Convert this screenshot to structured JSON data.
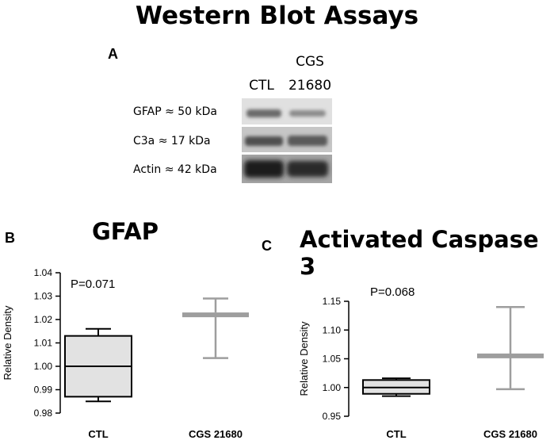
{
  "title": "Western Blot Assays",
  "panel_a": {
    "letter": "A",
    "lanes": [
      "CTL",
      "CGS",
      "21680"
    ],
    "bands": [
      "GFAP ≈ 50 kDa",
      "C3a ≈ 17 kDa",
      "Actin ≈ 42 kDa"
    ]
  },
  "chart_data": [
    {
      "type": "box",
      "panel": "B",
      "title": "GFAP",
      "ylabel": "Relative Density",
      "xlabel": "",
      "categories": [
        "CTL",
        "CGS 21680"
      ],
      "ylim": [
        0.98,
        1.04
      ],
      "yticks": [
        "0.98",
        "0.99",
        "1.00",
        "1.01",
        "1.02",
        "1.03",
        "1.04"
      ],
      "annotation": "P=0.071",
      "boxes": [
        {
          "category": "CTL",
          "min": 0.985,
          "q1": 0.987,
          "median": 1.0,
          "q3": 1.013,
          "max": 1.016
        },
        {
          "category": "CGS 21680",
          "min": 1.0035,
          "q1": 1.022,
          "median": 1.022,
          "q3": 1.023,
          "max": 1.029
        }
      ]
    },
    {
      "type": "box",
      "panel": "C",
      "title": "Activated Caspase 3",
      "ylabel": "Relative Density",
      "xlabel": "",
      "categories": [
        "CTL",
        "CGS 21680"
      ],
      "ylim": [
        0.95,
        1.15
      ],
      "yticks": [
        "0.95",
        "1.00",
        "1.05",
        "1.10",
        "1.15"
      ],
      "annotation": "P=0.068",
      "boxes": [
        {
          "category": "CTL",
          "min": 0.985,
          "q1": 0.989,
          "median": 1.0,
          "q3": 1.013,
          "max": 1.016
        },
        {
          "category": "CGS 21680",
          "min": 0.997,
          "q1": 1.053,
          "median": 1.055,
          "q3": 1.057,
          "max": 1.14
        }
      ]
    }
  ],
  "colors": {
    "box_fill": "#e2e2e2",
    "box_stroke": "#000000",
    "treated_stroke": "#9e9e9e"
  }
}
